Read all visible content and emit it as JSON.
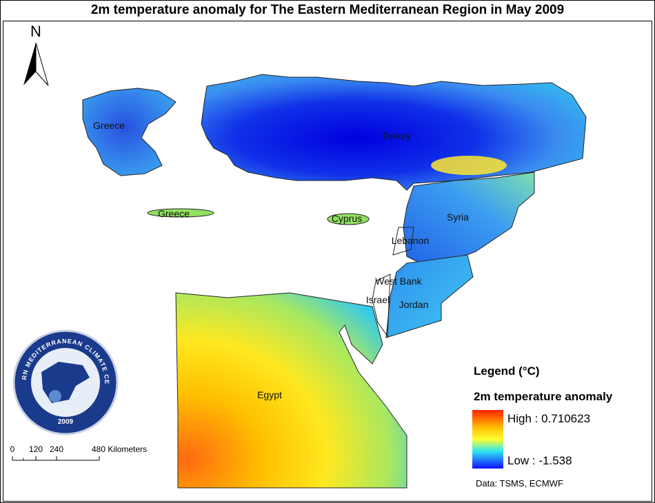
{
  "title": "2m temperature anomaly for The Eastern Mediterranean Region in May 2009",
  "north_arrow": "N",
  "labels": {
    "greece": "Greece",
    "turkey": "Turkey",
    "crete": "Greece",
    "cyprus": "Cyprus",
    "syria": "Syria",
    "lebanon": "Lebanon",
    "west_bank": "West Bank",
    "israel": "Israel",
    "jordan": "Jordan",
    "egypt": "Egypt"
  },
  "scale_bar": {
    "labels": [
      "0",
      "120",
      "240",
      "480 Kilometers"
    ]
  },
  "logo": {
    "text": "EASTERN MEDITERRANEAN CLIMATE CENTRE",
    "year": "2009"
  },
  "legend": {
    "title": "Legend (°C)",
    "subtitle": "2m temperature anomaly",
    "high": "High : 0.710623",
    "low": "Low : -1.538"
  },
  "source": "Data:  TSMS, ECMWF"
}
